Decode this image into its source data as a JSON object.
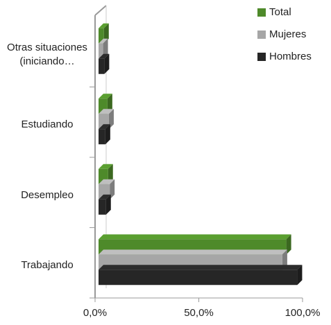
{
  "chart_data": {
    "type": "bar3d_horizontal",
    "categories": [
      "Otras situaciones (iniciando…",
      "Estudiando",
      "Desempleo",
      "Trabajando"
    ],
    "series": [
      {
        "name": "Total",
        "color": "#4e8a2a",
        "values": [
          2.6,
          4.3,
          4.6,
          90.5
        ]
      },
      {
        "name": "Mujeres",
        "color": "#a6a6a6",
        "values": [
          2.2,
          5.0,
          5.4,
          88.6
        ]
      },
      {
        "name": "Hombres",
        "color": "#262626",
        "values": [
          2.8,
          3.3,
          3.6,
          95.8
        ]
      }
    ],
    "xlim": [
      0,
      100
    ],
    "xticks": [
      {
        "value": 0,
        "label": "0,0%"
      },
      {
        "value": 50,
        "label": "50,0%"
      },
      {
        "value": 100,
        "label": "100,0%"
      }
    ],
    "legend": "top-right"
  }
}
